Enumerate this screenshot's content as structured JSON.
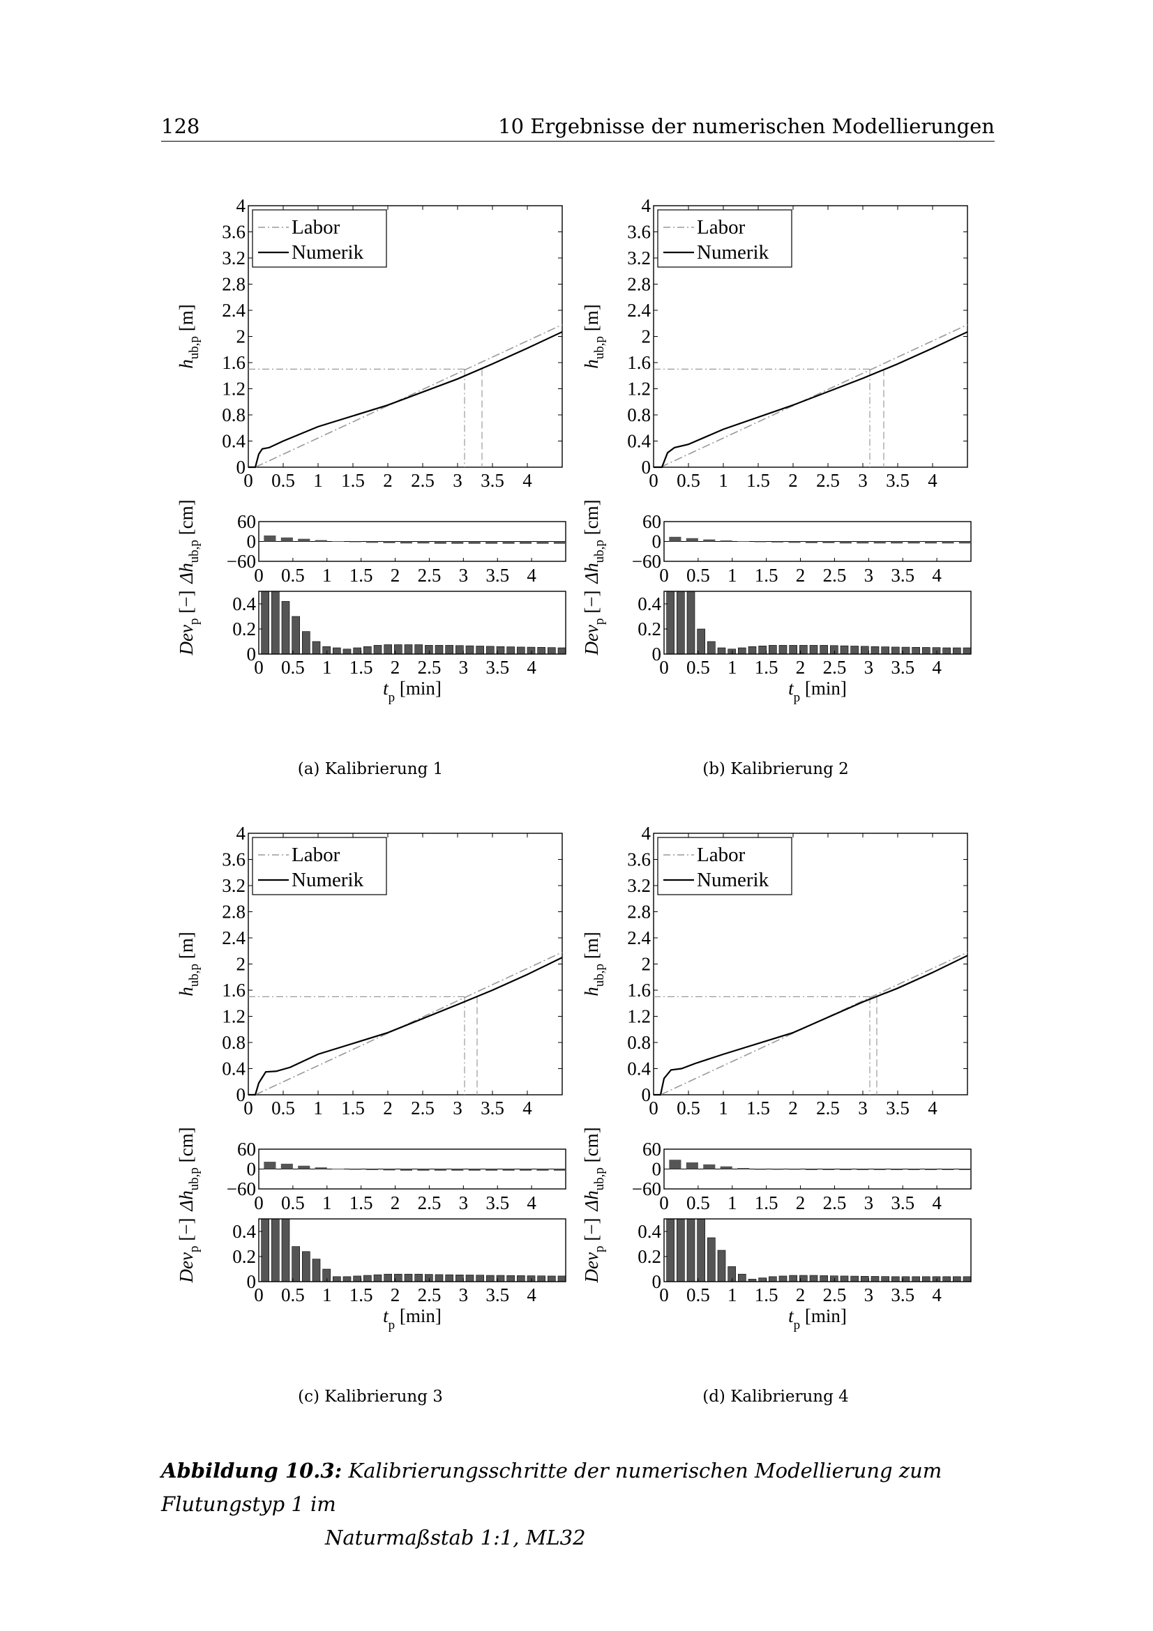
{
  "header": {
    "page_number": "128",
    "chapter_title": "10 Ergebnisse der numerischen Modellierungen"
  },
  "panels": [
    {
      "id": "a",
      "caption": "(a) Kalibrierung 1"
    },
    {
      "id": "b",
      "caption": "(b) Kalibrierung 2"
    },
    {
      "id": "c",
      "caption": "(c) Kalibrierung 3"
    },
    {
      "id": "d",
      "caption": "(d) Kalibrierung 4"
    }
  ],
  "figure_caption": {
    "label": "Abbildung 10.3:",
    "line1": " Kalibrierungsschritte der numerischen Modellierung zum Flutungstyp 1 im",
    "line2": "Naturmaßstab 1:1, ML32"
  },
  "colors": {
    "labor": "#999999",
    "numerik": "#000000",
    "bars": "#555555"
  },
  "chart_data": [
    {
      "type": "line",
      "panel": "a",
      "title": "",
      "ylabel": "h_ub,p [m]",
      "xlim": [
        0,
        4.5
      ],
      "ylim": [
        0,
        4
      ],
      "xticks": [
        "0",
        "0.5",
        "1",
        "1.5",
        "2",
        "2.5",
        "3",
        "3.5",
        "4"
      ],
      "yticks": [
        "0",
        "0.4",
        "0.8",
        "1.2",
        "1.6",
        "2",
        "2.4",
        "2.8",
        "3.2",
        "3.6",
        "4"
      ],
      "legend": [
        "Labor",
        "Numerik"
      ],
      "reference": {
        "h": 1.5,
        "t_labor": 3.1,
        "t_numerik": 3.35
      },
      "series": [
        {
          "name": "Labor",
          "x": [
            0.1,
            4.5
          ],
          "y": [
            0,
            2.18
          ]
        },
        {
          "name": "Numerik",
          "x": [
            0,
            0.1,
            0.15,
            0.2,
            0.3,
            0.5,
            1.0,
            2.0,
            3.0,
            3.5,
            4.0,
            4.5
          ],
          "y": [
            0,
            0,
            0.2,
            0.28,
            0.3,
            0.4,
            0.62,
            0.95,
            1.35,
            1.58,
            1.82,
            2.07
          ]
        }
      ]
    },
    {
      "type": "bar",
      "panel": "a",
      "ylabel": "Δh_ub,p [cm]",
      "xlim": [
        0,
        4.5
      ],
      "ylim": [
        -60,
        60
      ],
      "xticks": [
        "0",
        "0.5",
        "1",
        "1.5",
        "2",
        "2.5",
        "3",
        "3.5",
        "4"
      ],
      "yticks": [
        "60",
        "0",
        "−60"
      ],
      "x": [
        0.25,
        0.5,
        0.75,
        1.0,
        1.25,
        1.5,
        1.75,
        2.0,
        2.25,
        2.5,
        2.75,
        3.0,
        3.25,
        3.5,
        3.75,
        4.0,
        4.25,
        4.5
      ],
      "values": [
        18,
        12,
        8,
        4,
        1,
        -2,
        -4,
        -5,
        -6,
        -6,
        -7,
        -7,
        -7,
        -7,
        -7,
        -7,
        -7,
        -7
      ]
    },
    {
      "type": "bar",
      "panel": "a",
      "ylabel": "Dev_p [−]",
      "xlabel": "t_p [min]",
      "xlim": [
        0,
        4.5
      ],
      "ylim": [
        0,
        0.5
      ],
      "xticks": [
        "0",
        "0.5",
        "1",
        "1.5",
        "2",
        "2.5",
        "3",
        "3.5",
        "4"
      ],
      "yticks": [
        "0",
        "0.2",
        "0.4"
      ],
      "x": [
        0.15,
        0.3,
        0.45,
        0.6,
        0.75,
        0.9,
        1.05,
        1.2,
        1.35,
        1.5,
        1.65,
        1.8,
        1.95,
        2.1,
        2.25,
        2.4,
        2.55,
        2.7,
        2.85,
        3.0,
        3.15,
        3.3,
        3.45,
        3.6,
        3.75,
        3.9,
        4.05,
        4.2,
        4.35,
        4.5
      ],
      "values": [
        0.5,
        0.5,
        0.42,
        0.3,
        0.18,
        0.1,
        0.06,
        0.05,
        0.04,
        0.05,
        0.06,
        0.07,
        0.075,
        0.075,
        0.075,
        0.075,
        0.07,
        0.07,
        0.07,
        0.068,
        0.066,
        0.064,
        0.062,
        0.06,
        0.058,
        0.056,
        0.055,
        0.054,
        0.052,
        0.05
      ]
    },
    {
      "type": "line",
      "panel": "b",
      "title": "",
      "ylabel": "h_ub,p [m]",
      "xlim": [
        0,
        4.5
      ],
      "ylim": [
        0,
        4
      ],
      "xticks": [
        "0",
        "0.5",
        "1",
        "1.5",
        "2",
        "2.5",
        "3",
        "3.5",
        "4"
      ],
      "yticks": [
        "0",
        "0.4",
        "0.8",
        "1.2",
        "1.6",
        "2",
        "2.4",
        "2.8",
        "3.2",
        "3.6",
        "4"
      ],
      "legend": [
        "Labor",
        "Numerik"
      ],
      "reference": {
        "h": 1.5,
        "t_labor": 3.1,
        "t_numerik": 3.3
      },
      "series": [
        {
          "name": "Labor",
          "x": [
            0.1,
            4.5
          ],
          "y": [
            0,
            2.18
          ]
        },
        {
          "name": "Numerik",
          "x": [
            0,
            0.12,
            0.2,
            0.3,
            0.5,
            1.0,
            2.0,
            3.0,
            3.5,
            4.0,
            4.5
          ],
          "y": [
            0,
            0,
            0.22,
            0.3,
            0.35,
            0.58,
            0.95,
            1.36,
            1.58,
            1.82,
            2.07
          ]
        }
      ]
    },
    {
      "type": "bar",
      "panel": "b",
      "ylabel": "Δh_ub,p [cm]",
      "xlim": [
        0,
        4.5
      ],
      "ylim": [
        -60,
        60
      ],
      "xticks": [
        "0",
        "0.5",
        "1",
        "1.5",
        "2",
        "2.5",
        "3",
        "3.5",
        "4"
      ],
      "yticks": [
        "60",
        "0",
        "−60"
      ],
      "x": [
        0.25,
        0.5,
        0.75,
        1.0,
        1.25,
        1.5,
        1.75,
        2.0,
        2.25,
        2.5,
        2.75,
        3.0,
        3.25,
        3.5,
        3.75,
        4.0,
        4.25,
        4.5
      ],
      "values": [
        14,
        10,
        6,
        3,
        1,
        -2,
        -3,
        -4,
        -5,
        -5,
        -6,
        -6,
        -6,
        -6,
        -6,
        -6,
        -6,
        -6
      ]
    },
    {
      "type": "bar",
      "panel": "b",
      "ylabel": "Dev_p [−]",
      "xlabel": "t_p [min]",
      "xlim": [
        0,
        4.5
      ],
      "ylim": [
        0,
        0.5
      ],
      "xticks": [
        "0",
        "0.5",
        "1",
        "1.5",
        "2",
        "2.5",
        "3",
        "3.5",
        "4"
      ],
      "yticks": [
        "0",
        "0.2",
        "0.4"
      ],
      "x": [
        0.15,
        0.3,
        0.45,
        0.6,
        0.75,
        0.9,
        1.05,
        1.2,
        1.35,
        1.5,
        1.65,
        1.8,
        1.95,
        2.1,
        2.25,
        2.4,
        2.55,
        2.7,
        2.85,
        3.0,
        3.15,
        3.3,
        3.45,
        3.6,
        3.75,
        3.9,
        4.05,
        4.2,
        4.35,
        4.5
      ],
      "values": [
        0.5,
        0.5,
        0.5,
        0.2,
        0.1,
        0.05,
        0.04,
        0.05,
        0.06,
        0.065,
        0.07,
        0.07,
        0.07,
        0.07,
        0.07,
        0.07,
        0.068,
        0.066,
        0.064,
        0.062,
        0.06,
        0.058,
        0.056,
        0.055,
        0.054,
        0.053,
        0.052,
        0.05,
        0.05,
        0.05
      ]
    },
    {
      "type": "line",
      "panel": "c",
      "title": "",
      "ylabel": "h_ub,p [m]",
      "xlim": [
        0,
        4.5
      ],
      "ylim": [
        0,
        4
      ],
      "xticks": [
        "0",
        "0.5",
        "1",
        "1.5",
        "2",
        "2.5",
        "3",
        "3.5",
        "4"
      ],
      "yticks": [
        "0",
        "0.4",
        "0.8",
        "1.2",
        "1.6",
        "2",
        "2.4",
        "2.8",
        "3.2",
        "3.6",
        "4"
      ],
      "legend": [
        "Labor",
        "Numerik"
      ],
      "reference": {
        "h": 1.5,
        "t_labor": 3.1,
        "t_numerik": 3.28
      },
      "series": [
        {
          "name": "Labor",
          "x": [
            0.1,
            4.5
          ],
          "y": [
            0,
            2.18
          ]
        },
        {
          "name": "Numerik",
          "x": [
            0,
            0.1,
            0.15,
            0.25,
            0.4,
            0.6,
            1.0,
            2.0,
            3.0,
            3.5,
            4.0,
            4.5
          ],
          "y": [
            0,
            0,
            0.18,
            0.35,
            0.36,
            0.42,
            0.62,
            0.95,
            1.38,
            1.6,
            1.84,
            2.1
          ]
        }
      ]
    },
    {
      "type": "bar",
      "panel": "c",
      "ylabel": "Δh_ub,p [cm]",
      "xlim": [
        0,
        4.5
      ],
      "ylim": [
        -60,
        60
      ],
      "xticks": [
        "0",
        "0.5",
        "1",
        "1.5",
        "2",
        "2.5",
        "3",
        "3.5",
        "4"
      ],
      "yticks": [
        "60",
        "0",
        "−60"
      ],
      "x": [
        0.25,
        0.5,
        0.75,
        1.0,
        1.25,
        1.5,
        1.75,
        2.0,
        2.25,
        2.5,
        2.75,
        3.0,
        3.25,
        3.5,
        3.75,
        4.0,
        4.25,
        4.5
      ],
      "values": [
        22,
        16,
        10,
        5,
        1,
        -2,
        -3,
        -4,
        -5,
        -5,
        -5,
        -5,
        -5,
        -5,
        -5,
        -5,
        -5,
        -5
      ]
    },
    {
      "type": "bar",
      "panel": "c",
      "ylabel": "Dev_p [−]",
      "xlabel": "t_p [min]",
      "xlim": [
        0,
        4.5
      ],
      "ylim": [
        0,
        0.5
      ],
      "xticks": [
        "0",
        "0.5",
        "1",
        "1.5",
        "2",
        "2.5",
        "3",
        "3.5",
        "4"
      ],
      "yticks": [
        "0",
        "0.2",
        "0.4"
      ],
      "x": [
        0.15,
        0.3,
        0.45,
        0.6,
        0.75,
        0.9,
        1.05,
        1.2,
        1.35,
        1.5,
        1.65,
        1.8,
        1.95,
        2.1,
        2.25,
        2.4,
        2.55,
        2.7,
        2.85,
        3.0,
        3.15,
        3.3,
        3.45,
        3.6,
        3.75,
        3.9,
        4.05,
        4.2,
        4.35,
        4.5
      ],
      "values": [
        0.5,
        0.5,
        0.5,
        0.28,
        0.24,
        0.18,
        0.1,
        0.04,
        0.04,
        0.045,
        0.05,
        0.055,
        0.06,
        0.06,
        0.06,
        0.06,
        0.058,
        0.056,
        0.055,
        0.054,
        0.053,
        0.052,
        0.05,
        0.05,
        0.049,
        0.048,
        0.047,
        0.046,
        0.045,
        0.045
      ]
    },
    {
      "type": "line",
      "panel": "d",
      "title": "",
      "ylabel": "h_ub,p [m]",
      "xlim": [
        0,
        4.5
      ],
      "ylim": [
        0,
        4
      ],
      "xticks": [
        "0",
        "0.5",
        "1",
        "1.5",
        "2",
        "2.5",
        "3",
        "3.5",
        "4"
      ],
      "yticks": [
        "0",
        "0.4",
        "0.8",
        "1.2",
        "1.6",
        "2",
        "2.4",
        "2.8",
        "3.2",
        "3.6",
        "4"
      ],
      "legend": [
        "Labor",
        "Numerik"
      ],
      "reference": {
        "h": 1.5,
        "t_labor": 3.1,
        "t_numerik": 3.2
      },
      "series": [
        {
          "name": "Labor",
          "x": [
            0.1,
            4.5
          ],
          "y": [
            0,
            2.18
          ]
        },
        {
          "name": "Numerik",
          "x": [
            0,
            0.1,
            0.15,
            0.25,
            0.4,
            0.6,
            1.0,
            2.0,
            3.0,
            3.5,
            4.0,
            4.5
          ],
          "y": [
            0,
            0,
            0.25,
            0.38,
            0.4,
            0.48,
            0.62,
            0.95,
            1.42,
            1.63,
            1.87,
            2.13
          ]
        }
      ]
    },
    {
      "type": "bar",
      "panel": "d",
      "ylabel": "Δh_ub,p [cm]",
      "xlim": [
        0,
        4.5
      ],
      "ylim": [
        -60,
        60
      ],
      "xticks": [
        "0",
        "0.5",
        "1",
        "1.5",
        "2",
        "2.5",
        "3",
        "3.5",
        "4"
      ],
      "yticks": [
        "60",
        "0",
        "−60"
      ],
      "x": [
        0.25,
        0.5,
        0.75,
        1.0,
        1.25,
        1.5,
        1.75,
        2.0,
        2.25,
        2.5,
        2.75,
        3.0,
        3.25,
        3.5,
        3.75,
        4.0,
        4.25,
        4.5
      ],
      "values": [
        28,
        20,
        14,
        8,
        3,
        0,
        -2,
        -2,
        -3,
        -3,
        -3,
        -3,
        -3,
        -3,
        -3,
        -3,
        -3,
        -3
      ]
    },
    {
      "type": "bar",
      "panel": "d",
      "ylabel": "Dev_p [−]",
      "xlabel": "t_p [min]",
      "xlim": [
        0,
        4.5
      ],
      "ylim": [
        0,
        0.5
      ],
      "xticks": [
        "0",
        "0.5",
        "1",
        "1.5",
        "2",
        "2.5",
        "3",
        "3.5",
        "4"
      ],
      "yticks": [
        "0",
        "0.2",
        "0.4"
      ],
      "x": [
        0.15,
        0.3,
        0.45,
        0.6,
        0.75,
        0.9,
        1.05,
        1.2,
        1.35,
        1.5,
        1.65,
        1.8,
        1.95,
        2.1,
        2.25,
        2.4,
        2.55,
        2.7,
        2.85,
        3.0,
        3.15,
        3.3,
        3.45,
        3.6,
        3.75,
        3.9,
        4.05,
        4.2,
        4.35,
        4.5
      ],
      "values": [
        0.5,
        0.5,
        0.5,
        0.5,
        0.35,
        0.25,
        0.12,
        0.06,
        0.02,
        0.03,
        0.04,
        0.045,
        0.05,
        0.05,
        0.05,
        0.048,
        0.046,
        0.045,
        0.044,
        0.043,
        0.042,
        0.041,
        0.04,
        0.04,
        0.04,
        0.04,
        0.04,
        0.04,
        0.04,
        0.04
      ]
    }
  ]
}
